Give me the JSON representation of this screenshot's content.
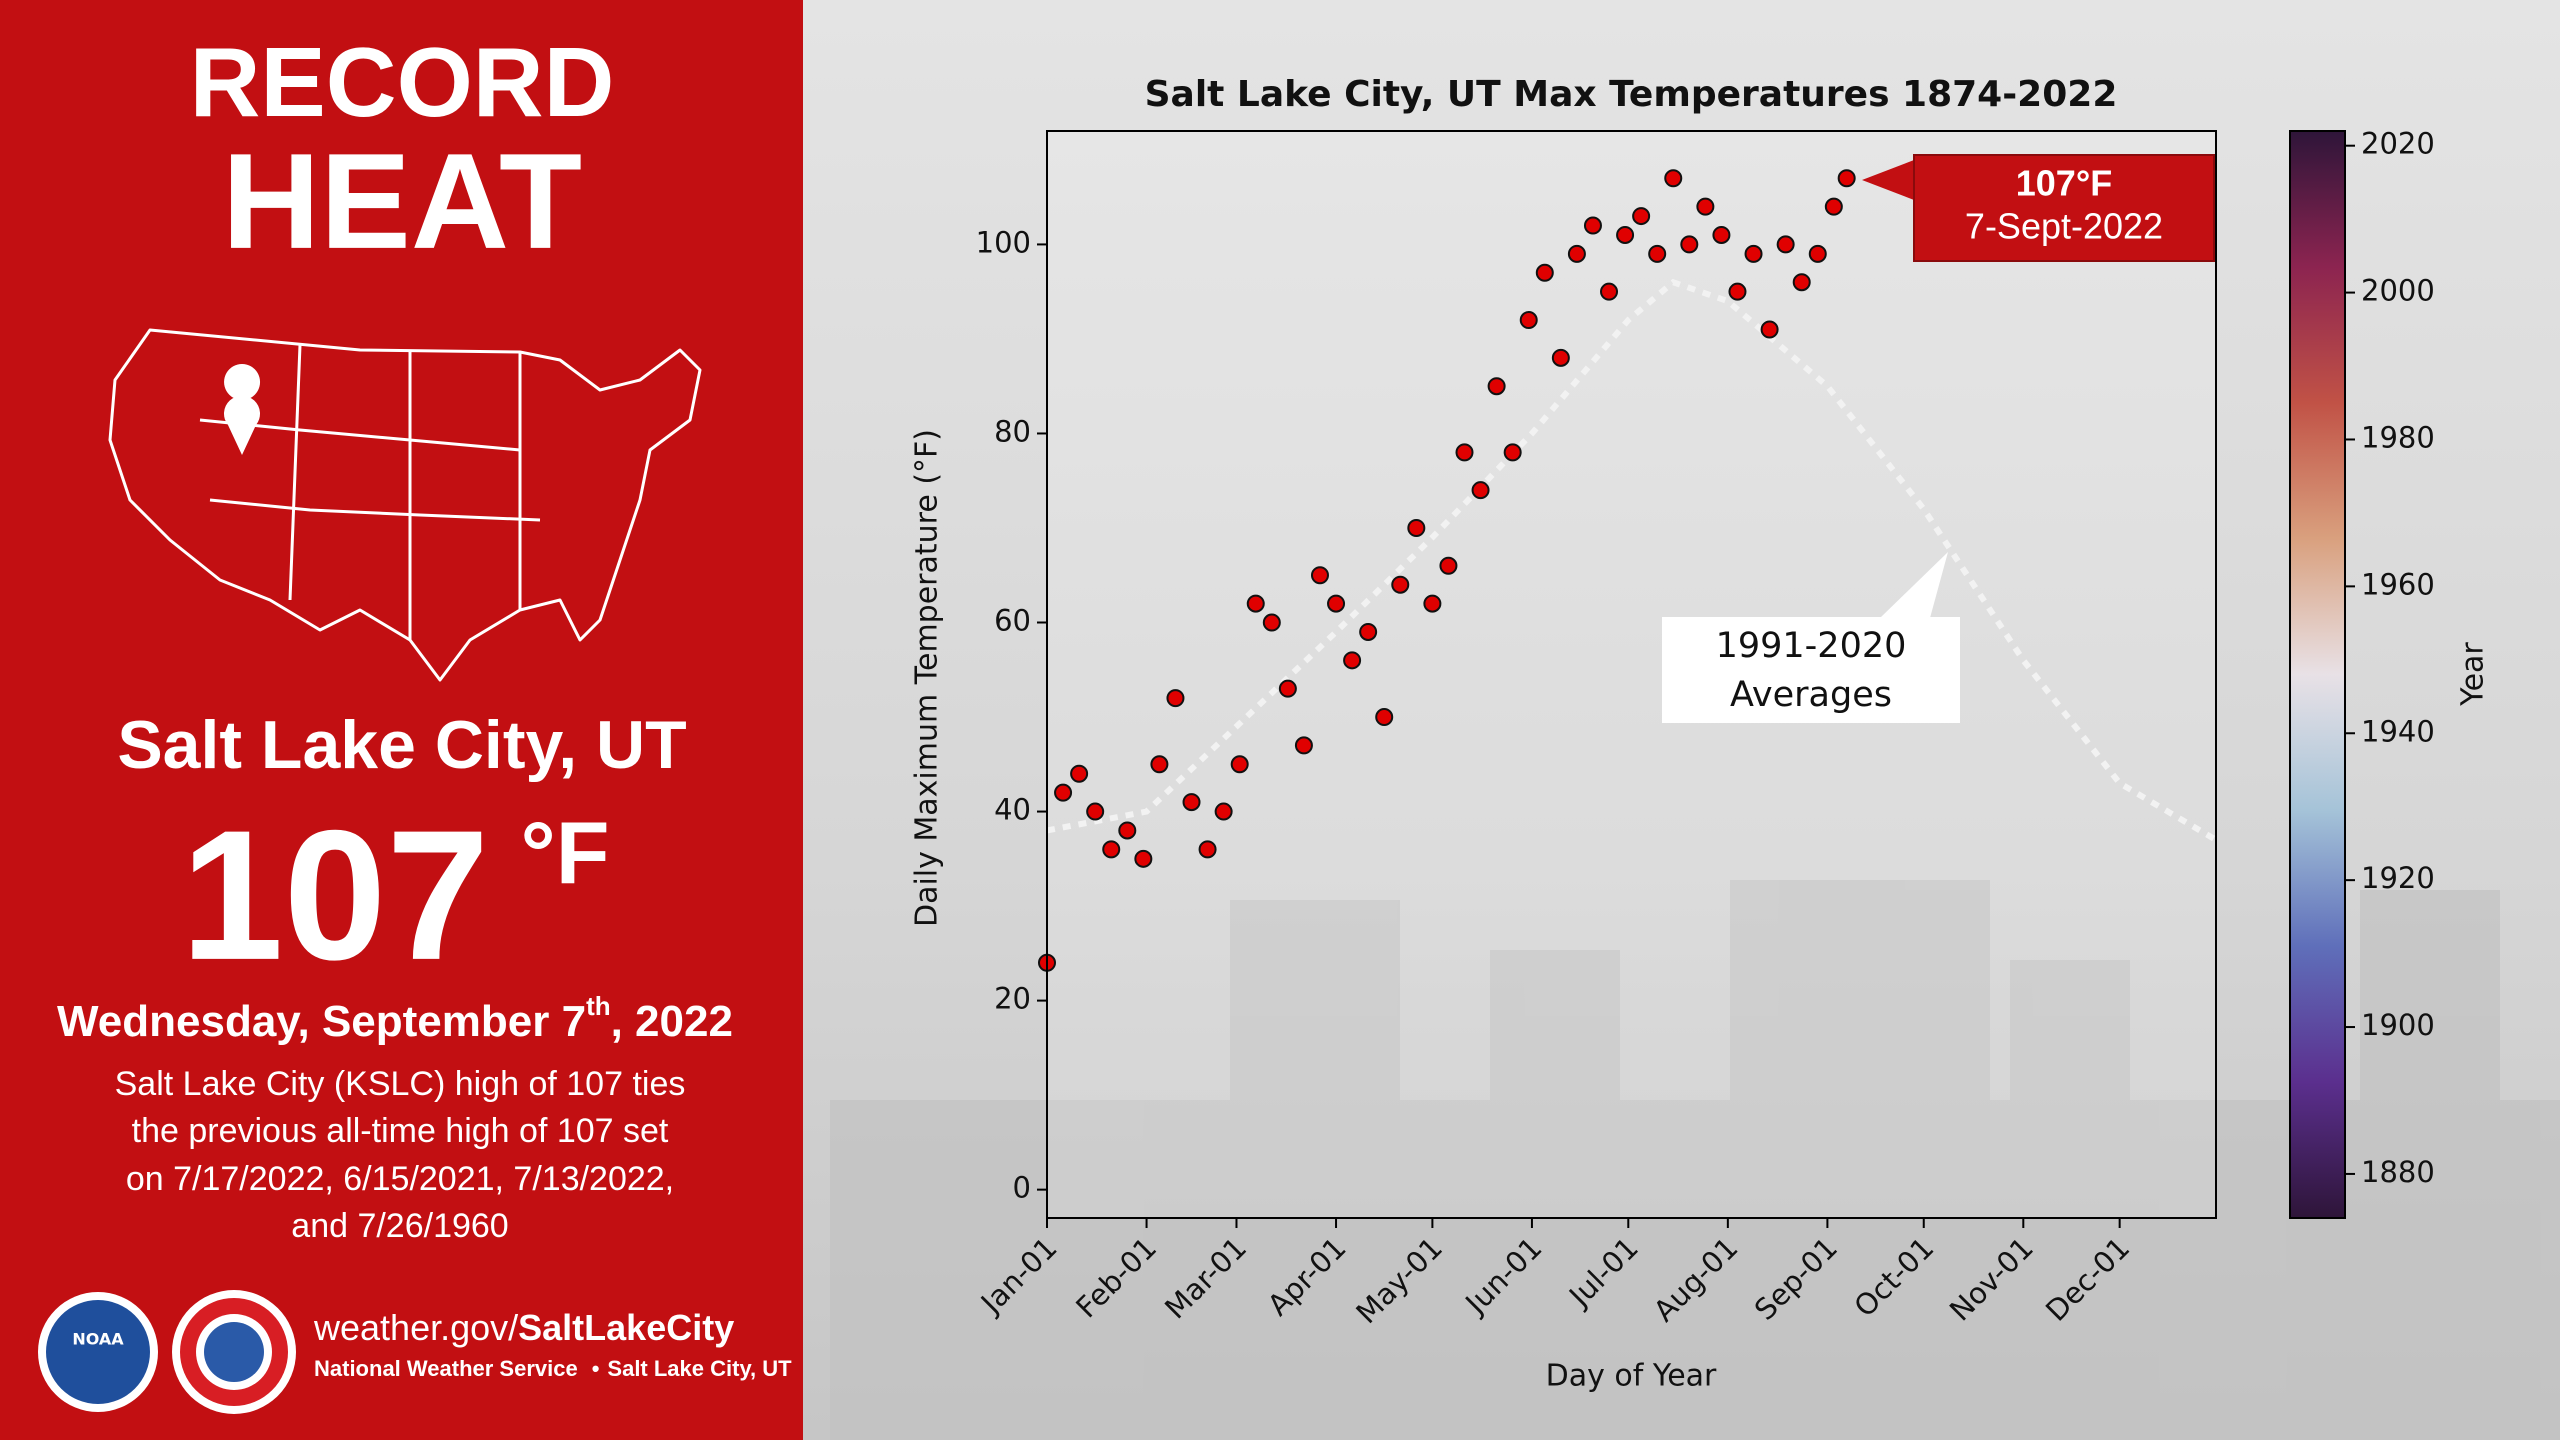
{
  "panel": {
    "title": [
      "RECORD",
      "HEAT"
    ],
    "location": "Salt Lake City, UT",
    "temperature": "107",
    "unit": "°F",
    "date": {
      "main": "Wednesday, September 7",
      "sup": "th",
      "end": ", 2022"
    },
    "description": [
      "Salt Lake City (KSLC) high of 107 ties",
      "the previous all-time high of 107 set",
      "on 7/17/2022, 6/15/2021, 7/13/2022,",
      "and 7/26/1960"
    ],
    "logo": "NOAA",
    "footer": {
      "site": "weather.gov/",
      "site_bold": "SaltLakeCity",
      "org": "National Weather Service",
      "separator": "•",
      "place": "Salt Lake City, UT"
    }
  },
  "chart_data": {
    "type": "scatter",
    "title": "Salt Lake City, UT Max Temperatures 1874-2022",
    "x_label": "Day of Year",
    "y_label": "Daily Maximum Temperature (°F)",
    "xlim": [
      1,
      365
    ],
    "xticks": [
      {
        "value": 1,
        "label": "Jan-01"
      },
      {
        "value": 32,
        "label": "Feb-01"
      },
      {
        "value": 60,
        "label": "Mar-01"
      },
      {
        "value": 91,
        "label": "Apr-01"
      },
      {
        "value": 121,
        "label": "May-01"
      },
      {
        "value": 152,
        "label": "Jun-01"
      },
      {
        "value": 182,
        "label": "Jul-01"
      },
      {
        "value": 213,
        "label": "Aug-01"
      },
      {
        "value": 244,
        "label": "Sep-01"
      },
      {
        "value": 274,
        "label": "Oct-01"
      },
      {
        "value": 305,
        "label": "Nov-01"
      },
      {
        "value": 335,
        "label": "Dec-01"
      }
    ],
    "ylim": [
      -3,
      112
    ],
    "yticks": [
      0,
      20,
      40,
      60,
      80,
      100
    ],
    "grid": false,
    "series": [
      {
        "type": "line",
        "color": "#f2f2f2",
        "x": [
          1,
          32,
          60,
          91,
          121,
          152,
          182,
          196,
          213,
          244,
          274,
          305,
          335,
          365
        ],
        "values": [
          38,
          40,
          49,
          59,
          69,
          80,
          92,
          96,
          94,
          85,
          72,
          56,
          43,
          37
        ]
      },
      {
        "type": "scatter",
        "color": "#e00000",
        "x": [
          1,
          6,
          11,
          16,
          21,
          26,
          31,
          36,
          41,
          46,
          51,
          56,
          61,
          66,
          71,
          76,
          81,
          86,
          91,
          96,
          101,
          106,
          111,
          116,
          121,
          126,
          131,
          136,
          141,
          146,
          151,
          156,
          161,
          166,
          171,
          176,
          181,
          186,
          191,
          196,
          201,
          206,
          211,
          216,
          221,
          226,
          231,
          236,
          241,
          246,
          250
        ],
        "values": [
          24,
          42,
          44,
          40,
          36,
          38,
          35,
          45,
          52,
          41,
          36,
          40,
          45,
          62,
          60,
          53,
          47,
          65,
          62,
          56,
          59,
          50,
          64,
          70,
          62,
          66,
          78,
          74,
          85,
          78,
          92,
          97,
          88,
          99,
          102,
          95,
          101,
          103,
          99,
          107,
          100,
          104,
          101,
          95,
          99,
          91,
          100,
          96,
          99,
          104,
          107
        ]
      }
    ],
    "annotations": [
      [
        "107°F",
        "7-Sept-2022"
      ],
      [
        "1991-2020",
        "Averages"
      ]
    ],
    "colorbar": {
      "label": "Year",
      "lim": [
        1874,
        2022
      ],
      "ticks": [
        1880,
        1900,
        1920,
        1940,
        1960,
        1980,
        2000,
        2020
      ],
      "colormap": [
        "#2e1539",
        "#5b2f8e",
        "#5f6fba",
        "#a5c3d8",
        "#e8e1e6",
        "#d9a07e",
        "#c15246",
        "#8c2450",
        "#2e1539"
      ]
    }
  }
}
